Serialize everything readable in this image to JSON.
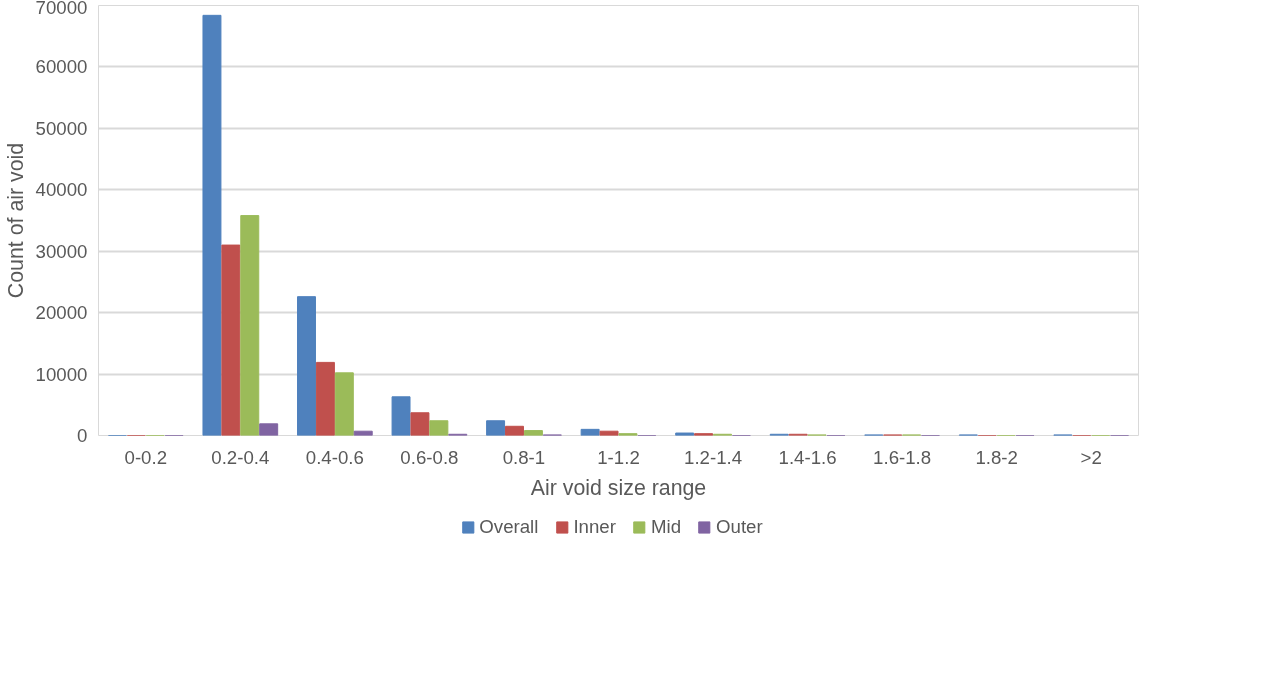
{
  "chart_data": {
    "type": "bar",
    "xlabel": "Air void size range",
    "ylabel": "Count of air void",
    "categories": [
      "0-0.2",
      "0.2-0.4",
      "0.4-0.6",
      "0.6-0.8",
      "0.8-1",
      "1-1.2",
      "1.2-1.4",
      "1.4-1.6",
      "1.6-1.8",
      "1.8-2",
      ">2"
    ],
    "series": [
      {
        "name": "Overall",
        "color": "#4f81bd",
        "values": [
          0,
          68400,
          22600,
          6300,
          2400,
          1000,
          400,
          200,
          100,
          100,
          100
        ]
      },
      {
        "name": "Inner",
        "color": "#c0504d",
        "values": [
          0,
          31000,
          11900,
          3700,
          1500,
          700,
          300,
          200,
          100,
          0,
          0
        ]
      },
      {
        "name": "Mid",
        "color": "#9bbb59",
        "values": [
          0,
          35800,
          10200,
          2400,
          800,
          300,
          200,
          100,
          100,
          0,
          0
        ]
      },
      {
        "name": "Outer",
        "color": "#8064a2",
        "values": [
          0,
          1900,
          700,
          200,
          100,
          0,
          0,
          0,
          0,
          0,
          0
        ]
      }
    ],
    "ylim": [
      0,
      70000
    ],
    "yticks": [
      0,
      10000,
      20000,
      30000,
      40000,
      50000,
      60000,
      70000
    ],
    "grid": "y",
    "legend": "bottom"
  }
}
